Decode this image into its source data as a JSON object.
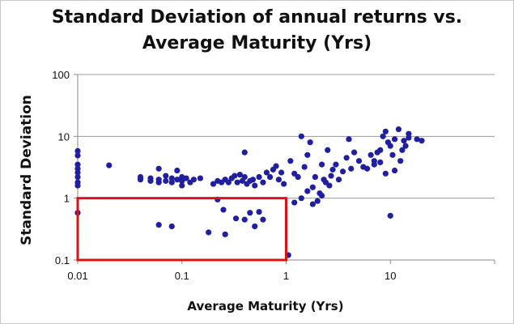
{
  "chart_data": {
    "type": "scatter",
    "title_lines": [
      "Standard Deviation of annual  returns vs.",
      "Average Maturity (Yrs)"
    ],
    "xlabel": "Average Maturity (Yrs)",
    "ylabel": "Standard Deviation",
    "x_scale": "log",
    "y_scale": "log",
    "xlim": [
      0.01,
      100
    ],
    "ylim": [
      0.1,
      100
    ],
    "x_ticks": [
      0.01,
      0.1,
      1,
      10
    ],
    "x_tick_labels": [
      "0.01",
      "0.1",
      "1",
      "10"
    ],
    "y_ticks": [
      0.1,
      1,
      10,
      100
    ],
    "y_tick_labels": [
      "0.1",
      "1",
      "10",
      "100"
    ],
    "grid": "horizontal",
    "marker_color": "#1f1fa0",
    "highlight_box": {
      "x": [
        0.01,
        1
      ],
      "y": [
        0.1,
        1
      ],
      "color": "#dd1111"
    },
    "points": [
      [
        0.01,
        5.8
      ],
      [
        0.01,
        4.9
      ],
      [
        0.01,
        3.5
      ],
      [
        0.01,
        3.0
      ],
      [
        0.01,
        2.6
      ],
      [
        0.01,
        2.2
      ],
      [
        0.01,
        1.8
      ],
      [
        0.01,
        1.6
      ],
      [
        0.01,
        0.58
      ],
      [
        0.02,
        3.4
      ],
      [
        0.04,
        2.2
      ],
      [
        0.04,
        2.0
      ],
      [
        0.05,
        1.9
      ],
      [
        0.05,
        2.1
      ],
      [
        0.06,
        2.0
      ],
      [
        0.06,
        1.8
      ],
      [
        0.06,
        3.0
      ],
      [
        0.07,
        2.3
      ],
      [
        0.07,
        1.9
      ],
      [
        0.08,
        2.1
      ],
      [
        0.08,
        1.8
      ],
      [
        0.09,
        2.8
      ],
      [
        0.09,
        2.0
      ],
      [
        0.1,
        2.2
      ],
      [
        0.1,
        1.9
      ],
      [
        0.1,
        1.6
      ],
      [
        0.11,
        2.1
      ],
      [
        0.12,
        1.8
      ],
      [
        0.13,
        2.0
      ],
      [
        0.15,
        2.1
      ],
      [
        0.2,
        1.7
      ],
      [
        0.22,
        1.9
      ],
      [
        0.24,
        1.8
      ],
      [
        0.26,
        2.0
      ],
      [
        0.28,
        1.8
      ],
      [
        0.3,
        2.1
      ],
      [
        0.32,
        2.3
      ],
      [
        0.34,
        1.8
      ],
      [
        0.36,
        2.4
      ],
      [
        0.38,
        1.9
      ],
      [
        0.4,
        5.5
      ],
      [
        0.4,
        2.2
      ],
      [
        0.42,
        1.7
      ],
      [
        0.45,
        1.9
      ],
      [
        0.48,
        2.0
      ],
      [
        0.5,
        1.6
      ],
      [
        0.55,
        2.2
      ],
      [
        0.6,
        1.8
      ],
      [
        0.65,
        2.6
      ],
      [
        0.7,
        2.2
      ],
      [
        0.75,
        2.9
      ],
      [
        0.8,
        3.3
      ],
      [
        0.85,
        2.0
      ],
      [
        0.9,
        2.6
      ],
      [
        0.95,
        1.7
      ],
      [
        0.06,
        0.37
      ],
      [
        0.08,
        0.35
      ],
      [
        0.22,
        0.95
      ],
      [
        0.25,
        0.65
      ],
      [
        0.18,
        0.28
      ],
      [
        0.26,
        0.26
      ],
      [
        0.33,
        0.47
      ],
      [
        0.4,
        0.45
      ],
      [
        0.45,
        0.58
      ],
      [
        0.5,
        0.35
      ],
      [
        0.55,
        0.6
      ],
      [
        0.6,
        0.45
      ],
      [
        1.05,
        0.12
      ],
      [
        1.1,
        4.0
      ],
      [
        1.2,
        2.5
      ],
      [
        1.3,
        2.2
      ],
      [
        1.4,
        10.0
      ],
      [
        1.5,
        3.2
      ],
      [
        1.6,
        5.0
      ],
      [
        1.7,
        8.0
      ],
      [
        1.8,
        1.5
      ],
      [
        1.9,
        2.2
      ],
      [
        2.0,
        0.9
      ],
      [
        2.1,
        1.2
      ],
      [
        2.2,
        3.5
      ],
      [
        2.3,
        2.0
      ],
      [
        2.4,
        1.8
      ],
      [
        2.5,
        6.0
      ],
      [
        2.6,
        1.6
      ],
      [
        2.7,
        2.3
      ],
      [
        2.8,
        2.9
      ],
      [
        3.0,
        3.5
      ],
      [
        3.2,
        2.0
      ],
      [
        3.5,
        2.7
      ],
      [
        3.8,
        4.5
      ],
      [
        4.0,
        9.0
      ],
      [
        4.2,
        3.0
      ],
      [
        4.5,
        5.5
      ],
      [
        5.0,
        4.0
      ],
      [
        5.5,
        3.2
      ],
      [
        1.2,
        0.85
      ],
      [
        1.4,
        1.0
      ],
      [
        1.6,
        1.3
      ],
      [
        1.8,
        0.8
      ],
      [
        2.2,
        1.1
      ],
      [
        7.0,
        3.5
      ],
      [
        7.5,
        5.5
      ],
      [
        8.0,
        6.0
      ],
      [
        8.5,
        10.0
      ],
      [
        9.0,
        12.0
      ],
      [
        9.5,
        8.0
      ],
      [
        10.0,
        7.0
      ],
      [
        10.5,
        5.0
      ],
      [
        11.0,
        9.0
      ],
      [
        12.0,
        13.0
      ],
      [
        12.5,
        4.0
      ],
      [
        13.0,
        6.0
      ],
      [
        13.5,
        8.5
      ],
      [
        14.0,
        7.0
      ],
      [
        15.0,
        11.0
      ],
      [
        18.0,
        9.0
      ],
      [
        20.0,
        8.5
      ],
      [
        10.0,
        0.52
      ],
      [
        9.0,
        2.5
      ],
      [
        6.5,
        5.0
      ],
      [
        6.0,
        3.0
      ],
      [
        7.0,
        4.0
      ],
      [
        8.0,
        3.8
      ],
      [
        11.0,
        2.8
      ],
      [
        15.0,
        9.5
      ]
    ]
  }
}
